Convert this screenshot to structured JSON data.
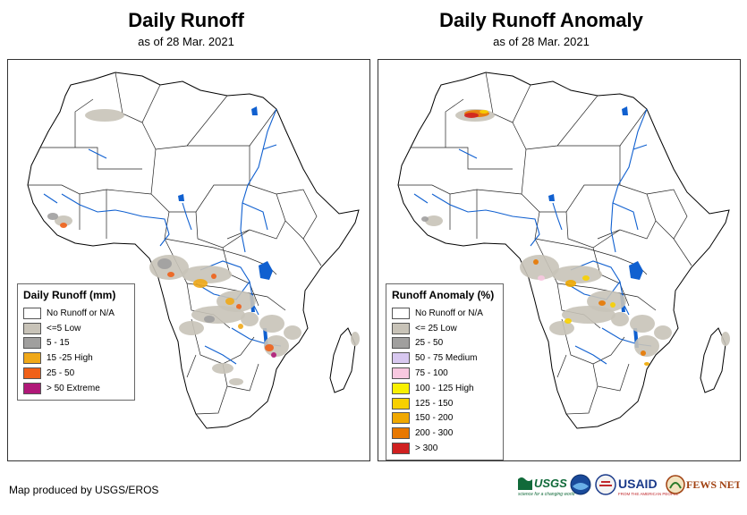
{
  "left_map": {
    "title": "Daily Runoff",
    "subtitle": "as of 28 Mar. 2021",
    "legend": {
      "title": "Daily Runoff (mm)",
      "items": [
        {
          "label": "No Runoff or N/A",
          "color": "#ffffff"
        },
        {
          "label": "<=5 Low",
          "color": "#c8c3b8"
        },
        {
          "label": "5 - 15",
          "color": "#a09f9e"
        },
        {
          "label": "15 -25 High",
          "color": "#f0a818"
        },
        {
          "label": "25 - 50",
          "color": "#f06018"
        },
        {
          "label": "> 50 Extreme",
          "color": "#b01878"
        }
      ]
    }
  },
  "right_map": {
    "title": "Daily Runoff Anomaly",
    "subtitle": "as of 28 Mar. 2021",
    "legend": {
      "title": "Runoff Anomaly (%)",
      "items": [
        {
          "label": "No Runoff or N/A",
          "color": "#ffffff"
        },
        {
          "label": "<= 25 Low",
          "color": "#c8c3b8"
        },
        {
          "label": "25 - 50",
          "color": "#a09f9e"
        },
        {
          "label": "50 - 75 Medium",
          "color": "#d8c8f0"
        },
        {
          "label": "75 - 100",
          "color": "#f8c8e0"
        },
        {
          "label": "100 - 125 High",
          "color": "#f8f000"
        },
        {
          "label": "125 - 150",
          "color": "#f8d000"
        },
        {
          "label": "150 - 200",
          "color": "#f0a800"
        },
        {
          "label": "200 - 300",
          "color": "#e87800"
        },
        {
          "label": "> 300",
          "color": "#d02020"
        }
      ]
    }
  },
  "footer": "Map produced by USGS/EROS",
  "logos": {
    "usgs": "USGS",
    "usgs_tagline": "science for a changing world",
    "usaid": "USAID",
    "usaid_tagline": "FROM THE AMERICAN PEOPLE",
    "fewsnet": "FEWS NET"
  },
  "colors": {
    "river": "#1060d0",
    "border": "#000000"
  }
}
